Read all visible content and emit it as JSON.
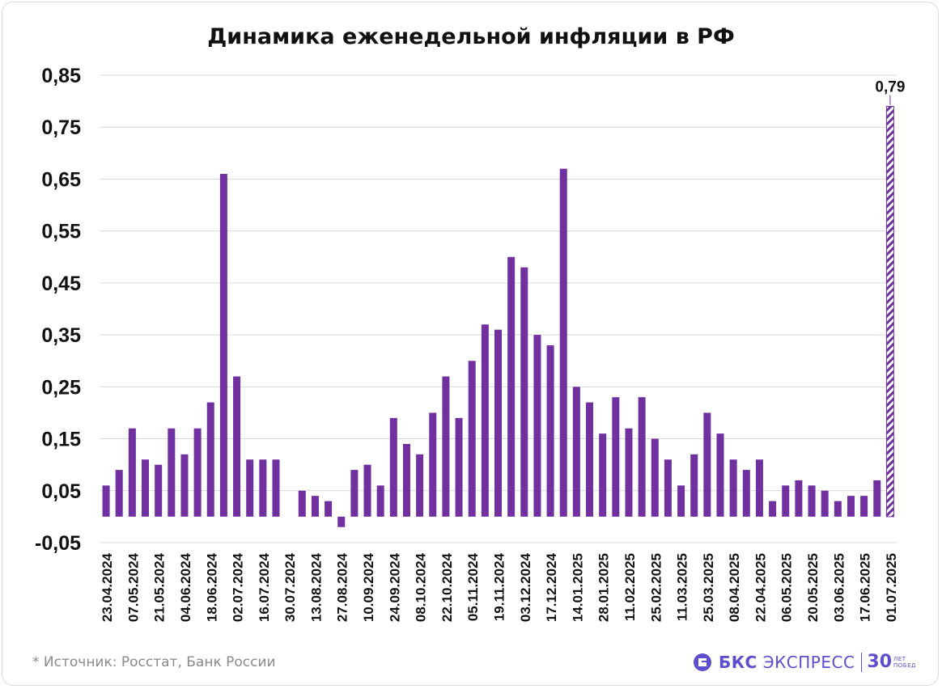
{
  "chart_data": {
    "type": "bar",
    "title": "Динамика еженедельной инфляции в РФ",
    "xlabel": "",
    "ylabel": "",
    "ylim": [
      -0.05,
      0.85
    ],
    "yticks": [
      "-0,05",
      "0,05",
      "0,15",
      "0,25",
      "0,35",
      "0,45",
      "0,55",
      "0,65",
      "0,75",
      "0,85"
    ],
    "grid": true,
    "legend": "none",
    "bar_color": "#7030a0",
    "highlight_color": "#7030a0",
    "categories": [
      "23.04.2024",
      "30.04.2024",
      "07.05.2024",
      "14.05.2024",
      "21.05.2024",
      "28.05.2024",
      "04.06.2024",
      "11.06.2024",
      "18.06.2024",
      "25.06.2024",
      "02.07.2024",
      "09.07.2024",
      "16.07.2024",
      "23.07.2024",
      "30.07.2024",
      "06.08.2024",
      "13.08.2024",
      "20.08.2024",
      "27.08.2024",
      "03.09.2024",
      "10.09.2024",
      "17.09.2024",
      "24.09.2024",
      "01.10.2024",
      "08.10.2024",
      "15.10.2024",
      "22.10.2024",
      "29.10.2024",
      "05.11.2024",
      "12.11.2024",
      "19.11.2024",
      "26.11.2024",
      "03.12.2024",
      "10.12.2024",
      "17.12.2024",
      "24.12.2024",
      "14.01.2025",
      "21.01.2025",
      "28.01.2025",
      "04.02.2025",
      "11.02.2025",
      "18.02.2025",
      "25.02.2025",
      "04.03.2025",
      "11.03.2025",
      "18.03.2025",
      "25.03.2025",
      "01.04.2025",
      "08.04.2025",
      "15.04.2025",
      "22.04.2025",
      "29.04.2025",
      "06.05.2025",
      "13.05.2025",
      "20.05.2025",
      "27.05.2025",
      "03.06.2025",
      "10.06.2025",
      "17.06.2025",
      "24.06.2025",
      "01.07.2025"
    ],
    "tick_labels": [
      "23.04.2024",
      "07.05.2024",
      "21.05.2024",
      "04.06.2024",
      "18.06.2024",
      "02.07.2024",
      "16.07.2024",
      "30.07.2024",
      "13.08.2024",
      "27.08.2024",
      "10.09.2024",
      "24.09.2024",
      "08.10.2024",
      "22.10.2024",
      "05.11.2024",
      "19.11.2024",
      "03.12.2024",
      "17.12.2024",
      "14.01.2025",
      "28.01.2025",
      "11.02.2025",
      "25.02.2025",
      "11.03.2025",
      "25.03.2025",
      "08.04.2025",
      "22.04.2025",
      "06.05.2025",
      "20.05.2025",
      "03.06.2025",
      "17.06.2025",
      "01.07.2025"
    ],
    "values": [
      0.06,
      0.09,
      0.17,
      0.11,
      0.1,
      0.17,
      0.12,
      0.17,
      0.22,
      0.66,
      0.27,
      0.11,
      0.11,
      0.11,
      0.0,
      0.05,
      0.04,
      0.03,
      -0.02,
      0.09,
      0.1,
      0.06,
      0.19,
      0.14,
      0.12,
      0.2,
      0.27,
      0.19,
      0.3,
      0.37,
      0.36,
      0.5,
      0.48,
      0.35,
      0.33,
      0.67,
      0.25,
      0.22,
      0.16,
      0.23,
      0.17,
      0.23,
      0.15,
      0.11,
      0.06,
      0.12,
      0.2,
      0.16,
      0.11,
      0.09,
      0.11,
      0.03,
      0.06,
      0.07,
      0.06,
      0.05,
      0.03,
      0.04,
      0.04,
      0.07,
      0.79
    ],
    "highlight_index": 60,
    "annotations": [
      {
        "category": "01.07.2025",
        "text": "0,79"
      }
    ]
  },
  "footer": {
    "source": "*  Источник: Росстат, Банк России",
    "brand_bold": "БКС",
    "brand_rest": " ЭКСПРЕСС",
    "brand_years": "30",
    "brand_sub_1": "ЛЕТ",
    "brand_sub_2": "ПОБЕД",
    "brand_color": "#5b4fd0"
  }
}
